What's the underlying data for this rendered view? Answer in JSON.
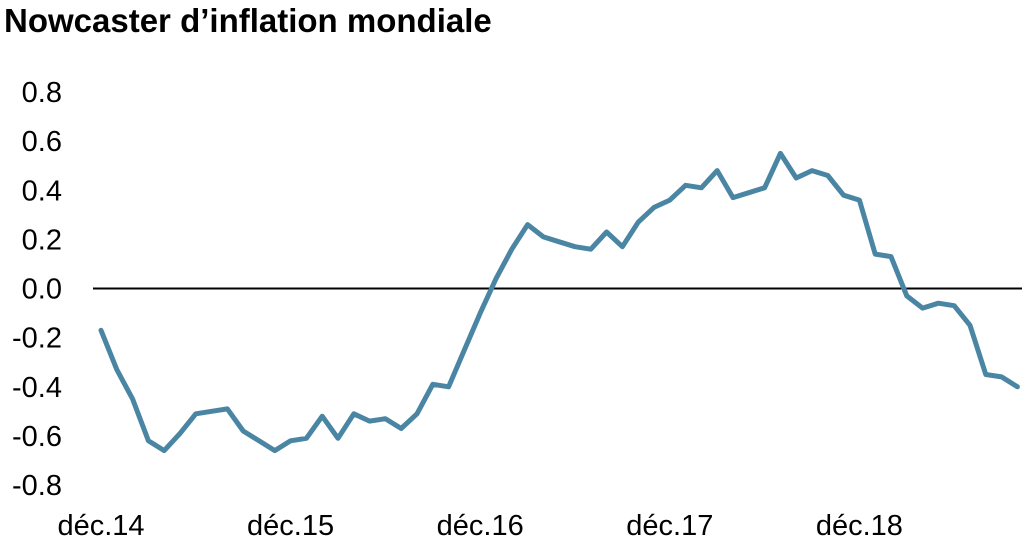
{
  "title": "Nowcaster d’inflation mondiale",
  "chart_data": {
    "type": "line",
    "title": "Nowcaster d’inflation mondiale",
    "xlabel": "",
    "ylabel": "",
    "ylim": [
      -0.8,
      0.8
    ],
    "yticks": [
      "0.8",
      "0.6",
      "0.4",
      "0.2",
      "0.0",
      "-0.2",
      "-0.4",
      "-0.6",
      "-0.8"
    ],
    "ytick_values": [
      0.8,
      0.6,
      0.4,
      0.2,
      0.0,
      -0.2,
      -0.4,
      -0.6,
      -0.8
    ],
    "xticks": [
      "déc.14",
      "déc.15",
      "déc.16",
      "déc.17",
      "déc.18"
    ],
    "x_start": "déc.14",
    "x_end": "sept.19",
    "grid": false,
    "zero_line": true,
    "line_color": "#4a86a3",
    "series": [
      {
        "values": [
          -0.17,
          -0.33,
          -0.45,
          -0.62,
          -0.66,
          -0.59,
          -0.51,
          -0.5,
          -0.49,
          -0.58,
          -0.62,
          -0.66,
          -0.62,
          -0.61,
          -0.52,
          -0.61,
          -0.51,
          -0.54,
          -0.53,
          -0.57,
          -0.51,
          -0.39,
          -0.4,
          -0.25,
          -0.1,
          0.04,
          0.16,
          0.26,
          0.21,
          0.19,
          0.17,
          0.16,
          0.23,
          0.17,
          0.27,
          0.33,
          0.36,
          0.42,
          0.41,
          0.48,
          0.37,
          0.39,
          0.41,
          0.55,
          0.45,
          0.48,
          0.46,
          0.38,
          0.36,
          0.14,
          0.13,
          -0.03,
          -0.08,
          -0.06,
          -0.07,
          -0.15,
          -0.35,
          -0.36,
          -0.4
        ]
      }
    ]
  }
}
